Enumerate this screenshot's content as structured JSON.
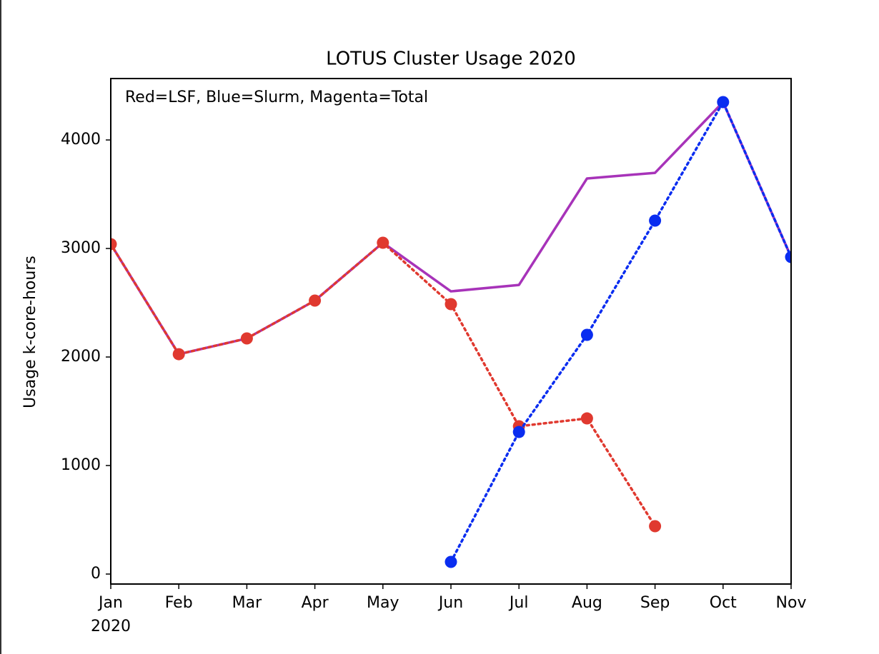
{
  "chart_data": {
    "type": "line",
    "title": "LOTUS Cluster Usage 2020",
    "annotation": "Red=LSF, Blue=Slurm, Magenta=Total",
    "y_label": "Usage k-core-hours",
    "categories": [
      "Jan",
      "Feb",
      "Mar",
      "Apr",
      "May",
      "Jun",
      "Jul",
      "Aug",
      "Sep",
      "Oct",
      "Nov"
    ],
    "x_sublabel": "2020",
    "series": [
      {
        "name": "Total",
        "color": "#a733b9",
        "style": "solid",
        "markers": false,
        "values": [
          3040,
          2026,
          2171,
          2520,
          3053,
          2605,
          2664,
          3645,
          3697,
          4349,
          2921
        ]
      },
      {
        "name": "LSF",
        "color": "#e0392f",
        "style": "dotted",
        "markers": true,
        "values": [
          3040,
          2026,
          2171,
          2520,
          3053,
          2487,
          1362,
          1434,
          441,
          null,
          null
        ]
      },
      {
        "name": "Slurm",
        "color": "#0a2df0",
        "style": "dotted",
        "markers": true,
        "values": [
          null,
          null,
          null,
          null,
          null,
          112,
          1309,
          2204,
          3257,
          4349,
          2921
        ]
      }
    ],
    "ylim": [
      -92,
      4566
    ],
    "yticks": [
      0,
      1000,
      2000,
      3000,
      4000
    ],
    "grid": false
  }
}
